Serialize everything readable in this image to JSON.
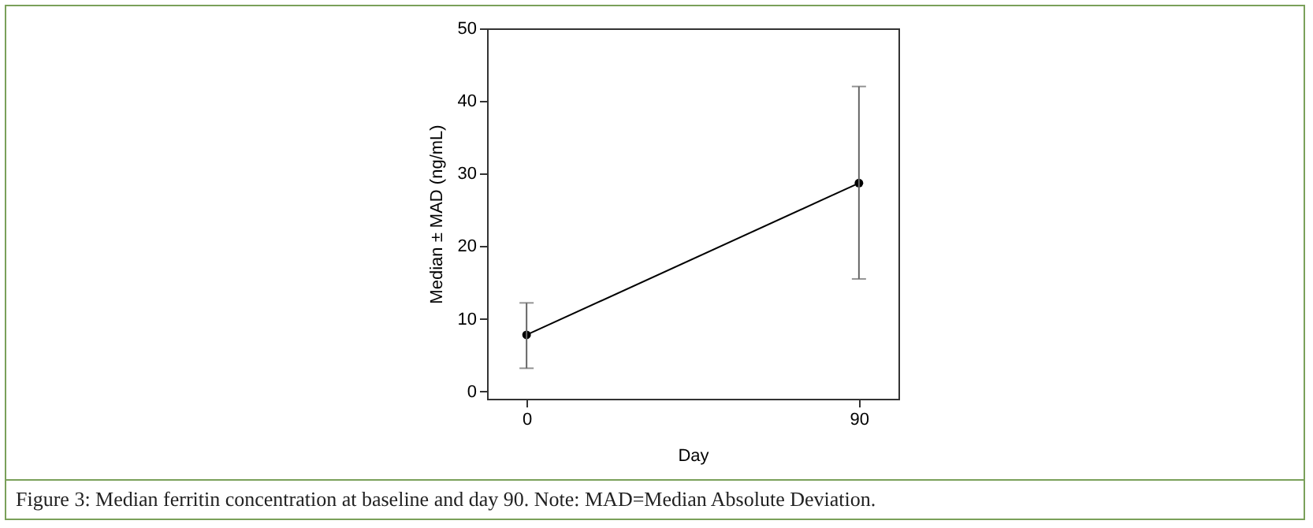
{
  "chart_data": {
    "type": "line",
    "xlabel": "Day",
    "ylabel": "Median ± MAD (ng/mL)",
    "x": [
      0,
      90
    ],
    "series": [
      {
        "color": "#000000",
        "values": [
          7.8,
          28.7
        ],
        "errors": [
          [
            3.2,
            12.2
          ],
          [
            15.5,
            42.0
          ]
        ]
      }
    ],
    "xlim": [
      -10.7,
      100.7
    ],
    "xticks": [
      0,
      90
    ],
    "ylim": [
      -1,
      50
    ],
    "yticks": [
      0,
      10,
      20,
      30,
      40,
      50
    ],
    "marker": "circle",
    "line_style": "solid",
    "grid": false,
    "annotations": [
      "Figure 3: Median ferritin concentration at baseline and day 90. Note: MAD=Median Absolute Deviation."
    ]
  }
}
